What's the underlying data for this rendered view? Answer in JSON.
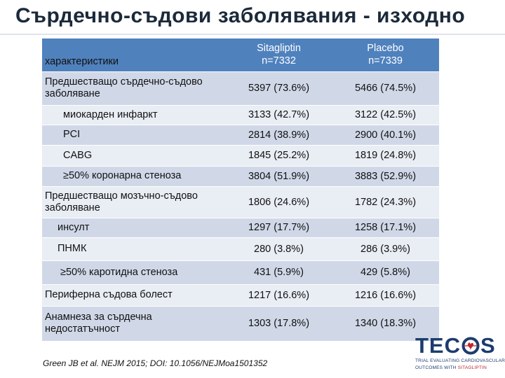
{
  "title": "Сърдечно-съдови заболявания - изходно",
  "table": {
    "header": {
      "characteristics": "характеристики",
      "col1_name": "Sitagliptin",
      "col1_n": "n=7332",
      "col2_name": "Placebo",
      "col2_n": "n=7339"
    },
    "rows": [
      {
        "label": "Предшестващо сърдечно-съдово заболяване",
        "sitagliptin": "5397 (73.6%)",
        "placebo": "5466 (74.5%)"
      },
      {
        "label": "миокарден инфаркт",
        "sitagliptin": "3133 (42.7%)",
        "placebo": "3122 (42.5%)"
      },
      {
        "label": "PCI",
        "sitagliptin": "2814 (38.9%)",
        "placebo": "2900 (40.1%)"
      },
      {
        "label": "CABG",
        "sitagliptin": "1845 (25.2%)",
        "placebo": "1819 (24.8%)"
      },
      {
        "label": "≥50% коронарна стеноза",
        "sitagliptin": "3804 (51.9%)",
        "placebo": "3883 (52.9%)"
      },
      {
        "label": "Предшестващо мозъчно-съдово заболяване",
        "sitagliptin": "1806 (24.6%)",
        "placebo": "1782 (24.3%)"
      },
      {
        "label": "инсулт",
        "sitagliptin": "1297 (17.7%)",
        "placebo": "1258 (17.1%)"
      },
      {
        "label": "ПНМК",
        "sitagliptin": "280 (3.8%)",
        "placebo": "286 (3.9%)"
      },
      {
        "label": "≥50% каротидна стеноза",
        "sitagliptin": "431 (5.9%)",
        "placebo": "429 (5.8%)"
      },
      {
        "label": "Периферна съдова болест",
        "sitagliptin": "1217 (16.6%)",
        "placebo": "1216 (16.6%)"
      },
      {
        "label": "Анамнеза за сърдечна недостатъчност",
        "sitagliptin": "1303 (17.8%)",
        "placebo": "1340 (18.3%)"
      }
    ]
  },
  "footnote": "Green JB et al. NEJM 2015; DOI: 10.1056/NEJMoa1501352",
  "logo": {
    "word_left": "TEC",
    "word_right": "S",
    "tagline_1": "TRIAL EVALUATING CARDIOVASCULAR",
    "tagline_2_a": "OUTCOMES WITH",
    "tagline_2_b": "SITAGLIPTIN"
  },
  "colors": {
    "header_blue": "#4f81bd",
    "row_dark": "#d0d8e8",
    "row_light": "#e9edf4",
    "title": "#1b2a3a",
    "logo_blue": "#1d3c6e",
    "logo_red": "#c0282d"
  }
}
